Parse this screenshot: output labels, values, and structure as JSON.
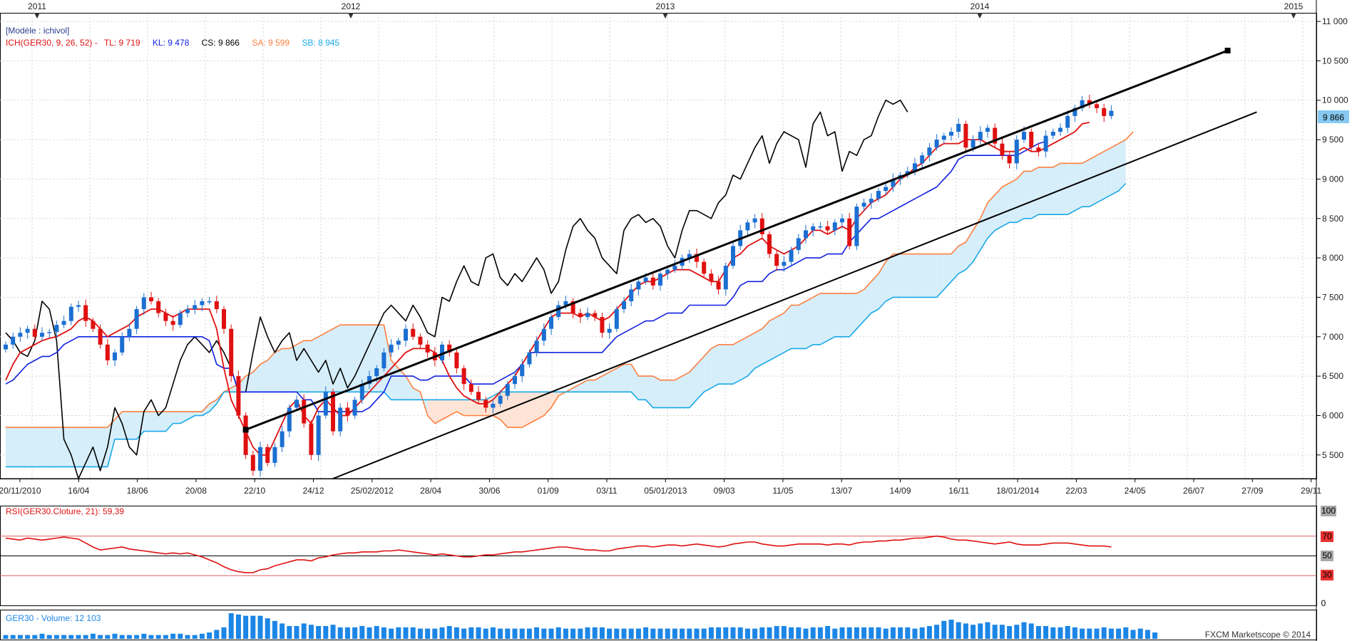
{
  "colors": {
    "bg": "#ffffff",
    "grid": "#d3d3d3",
    "candle_up": "#1b6fd1",
    "candle_down": "#e01010",
    "tenkan": "#e01010",
    "kijun": "#1020e0",
    "chikou": "#000000",
    "senkou_a": "#ff7f3f",
    "senkou_b": "#19a8e6",
    "cloud_bull": "#d6eefa",
    "cloud_bear": "#fde4d6",
    "rsi": "#e01010",
    "volume": "#1b86e6",
    "price_tag": "#87c9f2"
  },
  "header": {
    "model": "[Modèle : ichivol]",
    "ich": "ICH(GER30, 9, 26, 52) -",
    "tl": "TL: 9 719",
    "kl": "KL: 9 478",
    "cs": "CS: 9 866",
    "sa": "SA: 9 599",
    "sb": "SB: 8 945"
  },
  "price_tag": "9 866",
  "year_labels": [
    "2011",
    "2012",
    "2013",
    "2014",
    "2015"
  ],
  "x_labels": [
    "20/11/2010",
    "16/04",
    "18/06",
    "20/08",
    "22/10",
    "24/12",
    "25/02/2012",
    "28/04",
    "30/06",
    "01/09",
    "03/11",
    "05/01/2013",
    "09/03",
    "11/05",
    "13/07",
    "14/09",
    "16/11",
    "18/01/2014",
    "22/03",
    "24/05",
    "26/07",
    "27/09",
    "29/11"
  ],
  "rsi": {
    "title": "RSI(GER30.Cloture, 21): 59,39",
    "levels": [
      "100",
      "70",
      "50",
      "30",
      "0"
    ]
  },
  "volume": {
    "title": "GER30 - Volume: 12 103",
    "footer": "FXCM Marketscope © 2014"
  },
  "chart_data": {
    "type": "candlestick",
    "instrument": "GER30",
    "timeframe": "weekly",
    "y_ticks": [
      "11 000",
      "10 500",
      "10 000",
      "9 500",
      "9 000",
      "8 500",
      "8 000",
      "7 500",
      "7 000",
      "6 500",
      "6 000",
      "5 500"
    ],
    "ylim": [
      5200,
      11100
    ],
    "last_close": 9866,
    "indicators": {
      "tenkan": 9719,
      "kijun": 9478,
      "chikou": 9866,
      "senkou_a": 9599,
      "senkou_b": 8945
    },
    "close": [
      6900,
      7000,
      7050,
      7100,
      7000,
      7050,
      7060,
      7150,
      7200,
      7380,
      7400,
      7200,
      7100,
      6900,
      6700,
      6800,
      7000,
      7100,
      7350,
      7500,
      7450,
      7300,
      7200,
      7150,
      7300,
      7350,
      7400,
      7450,
      7450,
      7350,
      7100,
      6500,
      6000,
      5500,
      5300,
      5600,
      5400,
      5600,
      5800,
      6100,
      6200,
      5900,
      5500,
      6000,
      6300,
      5800,
      6100,
      6000,
      6200,
      6400,
      6500,
      6600,
      6800,
      6900,
      6950,
      7100,
      7000,
      6900,
      6800,
      6700,
      6900,
      6800,
      6600,
      6400,
      6300,
      6200,
      6100,
      6150,
      6250,
      6400,
      6500,
      6650,
      6800,
      6950,
      7100,
      7250,
      7400,
      7450,
      7300,
      7250,
      7300,
      7250,
      7050,
      7100,
      7350,
      7450,
      7600,
      7700,
      7750,
      7650,
      7800,
      7850,
      7900,
      8000,
      8050,
      7950,
      7800,
      7700,
      7600,
      7900,
      8150,
      8350,
      8450,
      8500,
      8300,
      8050,
      7900,
      7950,
      8100,
      8250,
      8350,
      8400,
      8400,
      8350,
      8450,
      8500,
      8150,
      8650,
      8700,
      8750,
      8850,
      8900,
      9000,
      9050,
      9100,
      9200,
      9300,
      9400,
      9500,
      9550,
      9600,
      9700,
      9400,
      9500,
      9600,
      9650,
      9450,
      9300,
      9200,
      9500,
      9600,
      9400,
      9350,
      9550,
      9600,
      9650,
      9800,
      9900,
      10000,
      9950,
      9900,
      9800,
      9866
    ],
    "chikou_line": [
      7050,
      6950,
      6800,
      6750,
      6950,
      7450,
      7350,
      6950,
      5700,
      5500,
      5200,
      5400,
      5600,
      5300,
      5600,
      6100,
      5900,
      5600,
      5500,
      6050,
      6200,
      6000,
      6100,
      6400,
      6700,
      6900,
      7000,
      6900,
      6800,
      6950,
      6800,
      6600,
      6300,
      6300,
      6800,
      7250,
      7000,
      6800,
      6950,
      7050,
      6700,
      6850,
      6700,
      6550,
      6700,
      6400,
      6600,
      6350,
      6500,
      6700,
      6900,
      7100,
      7300,
      7400,
      7300,
      7200,
      7400,
      7250,
      7050,
      7000,
      7500,
      7450,
      7700,
      7900,
      7700,
      7650,
      8000,
      8050,
      7750,
      7650,
      7800,
      7700,
      7850,
      8000,
      7850,
      7550,
      7700,
      8100,
      8400,
      8500,
      8350,
      8250,
      8000,
      7900,
      7800,
      8350,
      8500,
      8550,
      8450,
      8500,
      8400,
      8150,
      8000,
      8350,
      8600,
      8600,
      8550,
      8500,
      8700,
      8800,
      9050,
      9000,
      9200,
      9400,
      9550,
      9200,
      9450,
      9600,
      9550,
      9500,
      9150,
      9700,
      9850,
      9550,
      9600,
      9100,
      9350,
      9300,
      9500,
      9550,
      9800,
      10000,
      9950,
      10000,
      9850
    ],
    "tenkan_line": [
      6450,
      6650,
      6800,
      6850,
      6900,
      6950,
      6980,
      7000,
      7050,
      7100,
      7200,
      7250,
      7200,
      7100,
      7000,
      7050,
      7100,
      7150,
      7250,
      7300,
      7350,
      7350,
      7300,
      7250,
      7300,
      7350,
      7350,
      7350,
      7350,
      7100,
      6600,
      6200,
      6000,
      5800,
      5600,
      5500,
      5500,
      5700,
      5900,
      6100,
      6200,
      6000,
      5900,
      6100,
      6200,
      6100,
      6000,
      6000,
      6100,
      6200,
      6300,
      6400,
      6500,
      6600,
      6700,
      6800,
      6850,
      6850,
      6850,
      6800,
      6700,
      6500,
      6350,
      6250,
      6200,
      6150,
      6150,
      6200,
      6300,
      6400,
      6500,
      6650,
      6800,
      6950,
      7100,
      7250,
      7300,
      7300,
      7300,
      7250,
      7300,
      7250,
      7200,
      7250,
      7350,
      7450,
      7550,
      7650,
      7700,
      7700,
      7750,
      7800,
      7850,
      7850,
      7850,
      7800,
      7750,
      7700,
      7700,
      7850,
      8000,
      8050,
      8150,
      8200,
      8250,
      8150,
      8100,
      8050,
      8100,
      8150,
      8250,
      8350,
      8350,
      8300,
      8350,
      8400,
      8350,
      8500,
      8600,
      8700,
      8750,
      8800,
      8900,
      9000,
      9050,
      9150,
      9200,
      9300,
      9400,
      9450,
      9450,
      9450,
      9500,
      9500,
      9500,
      9450,
      9400,
      9350,
      9350,
      9350,
      9400,
      9350,
      9350,
      9400,
      9450,
      9500,
      9550,
      9600,
      9700,
      9719
    ],
    "kijun_line": [
      6400,
      6450,
      6550,
      6650,
      6700,
      6750,
      6750,
      6800,
      6900,
      6950,
      7000,
      7000,
      7000,
      7000,
      7000,
      7000,
      7000,
      7000,
      7000,
      7000,
      7000,
      7000,
      7000,
      7000,
      7000,
      7000,
      7000,
      7000,
      6950,
      6650,
      6600,
      6600,
      6300,
      6300,
      6300,
      6300,
      6300,
      6300,
      6300,
      6300,
      6300,
      6200,
      6200,
      6050,
      6050,
      6050,
      6050,
      6050,
      6050,
      6050,
      6100,
      6200,
      6300,
      6500,
      6500,
      6500,
      6500,
      6450,
      6450,
      6500,
      6500,
      6500,
      6500,
      6500,
      6400,
      6400,
      6400,
      6400,
      6450,
      6500,
      6550,
      6650,
      6800,
      6800,
      6800,
      6800,
      6800,
      6800,
      6800,
      6800,
      6800,
      6800,
      6800,
      6900,
      7000,
      7050,
      7100,
      7150,
      7200,
      7200,
      7250,
      7300,
      7300,
      7300,
      7400,
      7400,
      7400,
      7400,
      7400,
      7400,
      7500,
      7650,
      7700,
      7700,
      7700,
      7800,
      7850,
      7850,
      7900,
      7950,
      8000,
      8000,
      8000,
      8050,
      8050,
      8050,
      8200,
      8300,
      8400,
      8500,
      8500,
      8550,
      8600,
      8650,
      8700,
      8750,
      8800,
      8850,
      8900,
      9000,
      9100,
      9250,
      9300,
      9300,
      9300,
      9300,
      9300,
      9300,
      9300,
      9300,
      9350,
      9400,
      9450,
      9478
    ],
    "senkou_a_line": [
      5850,
      5850,
      5850,
      5850,
      5850,
      5850,
      5850,
      5850,
      5850,
      5850,
      5850,
      5850,
      5850,
      5850,
      5850,
      5950,
      6050,
      6050,
      6050,
      6050,
      6050,
      6050,
      6050,
      6050,
      6050,
      6050,
      6050,
      6050,
      6150,
      6200,
      6300,
      6350,
      6400,
      6500,
      6550,
      6650,
      6700,
      6800,
      6850,
      6850,
      6900,
      6950,
      6950,
      7000,
      7050,
      7100,
      7150,
      7150,
      7150,
      7150,
      7150,
      7150,
      7150,
      6700,
      6600,
      6500,
      6350,
      6300,
      6000,
      5900,
      5950,
      6000,
      6050,
      6000,
      6000,
      6000,
      6000,
      6000,
      5950,
      5850,
      5850,
      5850,
      5900,
      5950,
      6000,
      6100,
      6250,
      6300,
      6350,
      6400,
      6450,
      6450,
      6500,
      6550,
      6600,
      6650,
      6650,
      6500,
      6500,
      6500,
      6450,
      6450,
      6450,
      6500,
      6550,
      6650,
      6750,
      6850,
      6900,
      6900,
      6900,
      6950,
      7000,
      7050,
      7100,
      7200,
      7250,
      7300,
      7400,
      7400,
      7450,
      7500,
      7550,
      7550,
      7550,
      7550,
      7550,
      7550,
      7600,
      7700,
      7800,
      7950,
      8050,
      8050,
      8050,
      8050,
      8050,
      8050,
      8050,
      8050,
      8050,
      8150,
      8200,
      8350,
      8500,
      8700,
      8800,
      8900,
      8950,
      9000,
      9100,
      9100,
      9150,
      9150,
      9150,
      9200,
      9200,
      9200,
      9200,
      9250,
      9300,
      9350,
      9400,
      9450,
      9500,
      9599
    ],
    "senkou_b_line": [
      5350,
      5350,
      5350,
      5350,
      5350,
      5350,
      5350,
      5350,
      5350,
      5350,
      5350,
      5350,
      5350,
      5350,
      5350,
      5700,
      5700,
      5700,
      5700,
      5800,
      5800,
      5800,
      5800,
      5900,
      5900,
      5950,
      6000,
      6000,
      6050,
      6150,
      6300,
      6300,
      6300,
      6300,
      6300,
      6300,
      6300,
      6300,
      6300,
      6300,
      6300,
      6300,
      6300,
      6300,
      6300,
      6300,
      6300,
      6300,
      6300,
      6300,
      6300,
      6300,
      6300,
      6200,
      6200,
      6200,
      6200,
      6200,
      6200,
      6200,
      6200,
      6200,
      6200,
      6200,
      6200,
      6200,
      6200,
      6250,
      6300,
      6300,
      6300,
      6300,
      6300,
      6300,
      6300,
      6300,
      6300,
      6300,
      6300,
      6300,
      6300,
      6300,
      6300,
      6300,
      6300,
      6300,
      6300,
      6200,
      6200,
      6100,
      6100,
      6100,
      6100,
      6100,
      6100,
      6200,
      6300,
      6350,
      6400,
      6400,
      6400,
      6450,
      6500,
      6600,
      6650,
      6700,
      6750,
      6800,
      6850,
      6850,
      6850,
      6900,
      6900,
      6950,
      7000,
      7000,
      7000,
      7100,
      7200,
      7300,
      7350,
      7450,
      7500,
      7500,
      7500,
      7500,
      7500,
      7500,
      7500,
      7600,
      7700,
      7800,
      7850,
      7950,
      8100,
      8250,
      8350,
      8400,
      8450,
      8450,
      8500,
      8500,
      8550,
      8550,
      8550,
      8550,
      8550,
      8600,
      8650,
      8650,
      8700,
      8750,
      8800,
      8850,
      8945
    ],
    "trend_lines": [
      {
        "from_index": 33,
        "from_value": 5820,
        "to_index": 168,
        "to_value": 10630
      },
      {
        "from_index": 45,
        "from_value": 5200,
        "to_index": 172,
        "to_value": 9850
      }
    ],
    "rsi_values": [
      68,
      67,
      66,
      68,
      67,
      66,
      67,
      68,
      69,
      68,
      67,
      63,
      59,
      56,
      57,
      58,
      59,
      57,
      56,
      55,
      54,
      53,
      52,
      53,
      52,
      53,
      51,
      49,
      46,
      43,
      39,
      36,
      34,
      33,
      33,
      36,
      37,
      40,
      42,
      44,
      46,
      46,
      45,
      48,
      49,
      51,
      52,
      53,
      53,
      54,
      54,
      54,
      55,
      55,
      56,
      55,
      54,
      53,
      52,
      51,
      52,
      51,
      50,
      49,
      49,
      50,
      51,
      51,
      52,
      53,
      54,
      54,
      55,
      56,
      57,
      58,
      59,
      59,
      58,
      57,
      56,
      56,
      55,
      55,
      57,
      58,
      59,
      60,
      60,
      59,
      60,
      61,
      61,
      60,
      61,
      62,
      61,
      60,
      59,
      60,
      62,
      63,
      64,
      64,
      62,
      61,
      60,
      60,
      61,
      62,
      62,
      62,
      62,
      61,
      62,
      62,
      61,
      63,
      64,
      64,
      65,
      65,
      66,
      66,
      67,
      68,
      68,
      69,
      70,
      69,
      67,
      66,
      66,
      65,
      64,
      63,
      62,
      63,
      64,
      62,
      61,
      61,
      61,
      62,
      63,
      63,
      63,
      62,
      61,
      60,
      60,
      60,
      59
    ],
    "volume_values": [
      3,
      3,
      3,
      3,
      3,
      4,
      3,
      3,
      3,
      3,
      3,
      3,
      4,
      3,
      3,
      4,
      3,
      3,
      3,
      4,
      3,
      3,
      3,
      4,
      4,
      3,
      3,
      4,
      5,
      7,
      9,
      20,
      19,
      18,
      18,
      18,
      16,
      14,
      12,
      10,
      10,
      12,
      11,
      10,
      10,
      11,
      9,
      9,
      9,
      10,
      9,
      10,
      9,
      8,
      9,
      9,
      9,
      8,
      8,
      8,
      9,
      10,
      9,
      8,
      9,
      9,
      8,
      9,
      8,
      8,
      8,
      8,
      8,
      9,
      8,
      8,
      9,
      8,
      8,
      8,
      9,
      9,
      9,
      8,
      8,
      8,
      8,
      8,
      9,
      8,
      8,
      8,
      8,
      8,
      8,
      8,
      8,
      9,
      9,
      9,
      9,
      9,
      8,
      8,
      9,
      9,
      10,
      10,
      9,
      9,
      8,
      9,
      9,
      10,
      8,
      9,
      9,
      9,
      9,
      9,
      9,
      8,
      9,
      9,
      9,
      8,
      9,
      10,
      11,
      14,
      15,
      13,
      12,
      11,
      12,
      13,
      11,
      11,
      10,
      11,
      13,
      12,
      10,
      10,
      9,
      9,
      10,
      9,
      8,
      8,
      8,
      9,
      8,
      8,
      9,
      7,
      8,
      7,
      5
    ]
  }
}
